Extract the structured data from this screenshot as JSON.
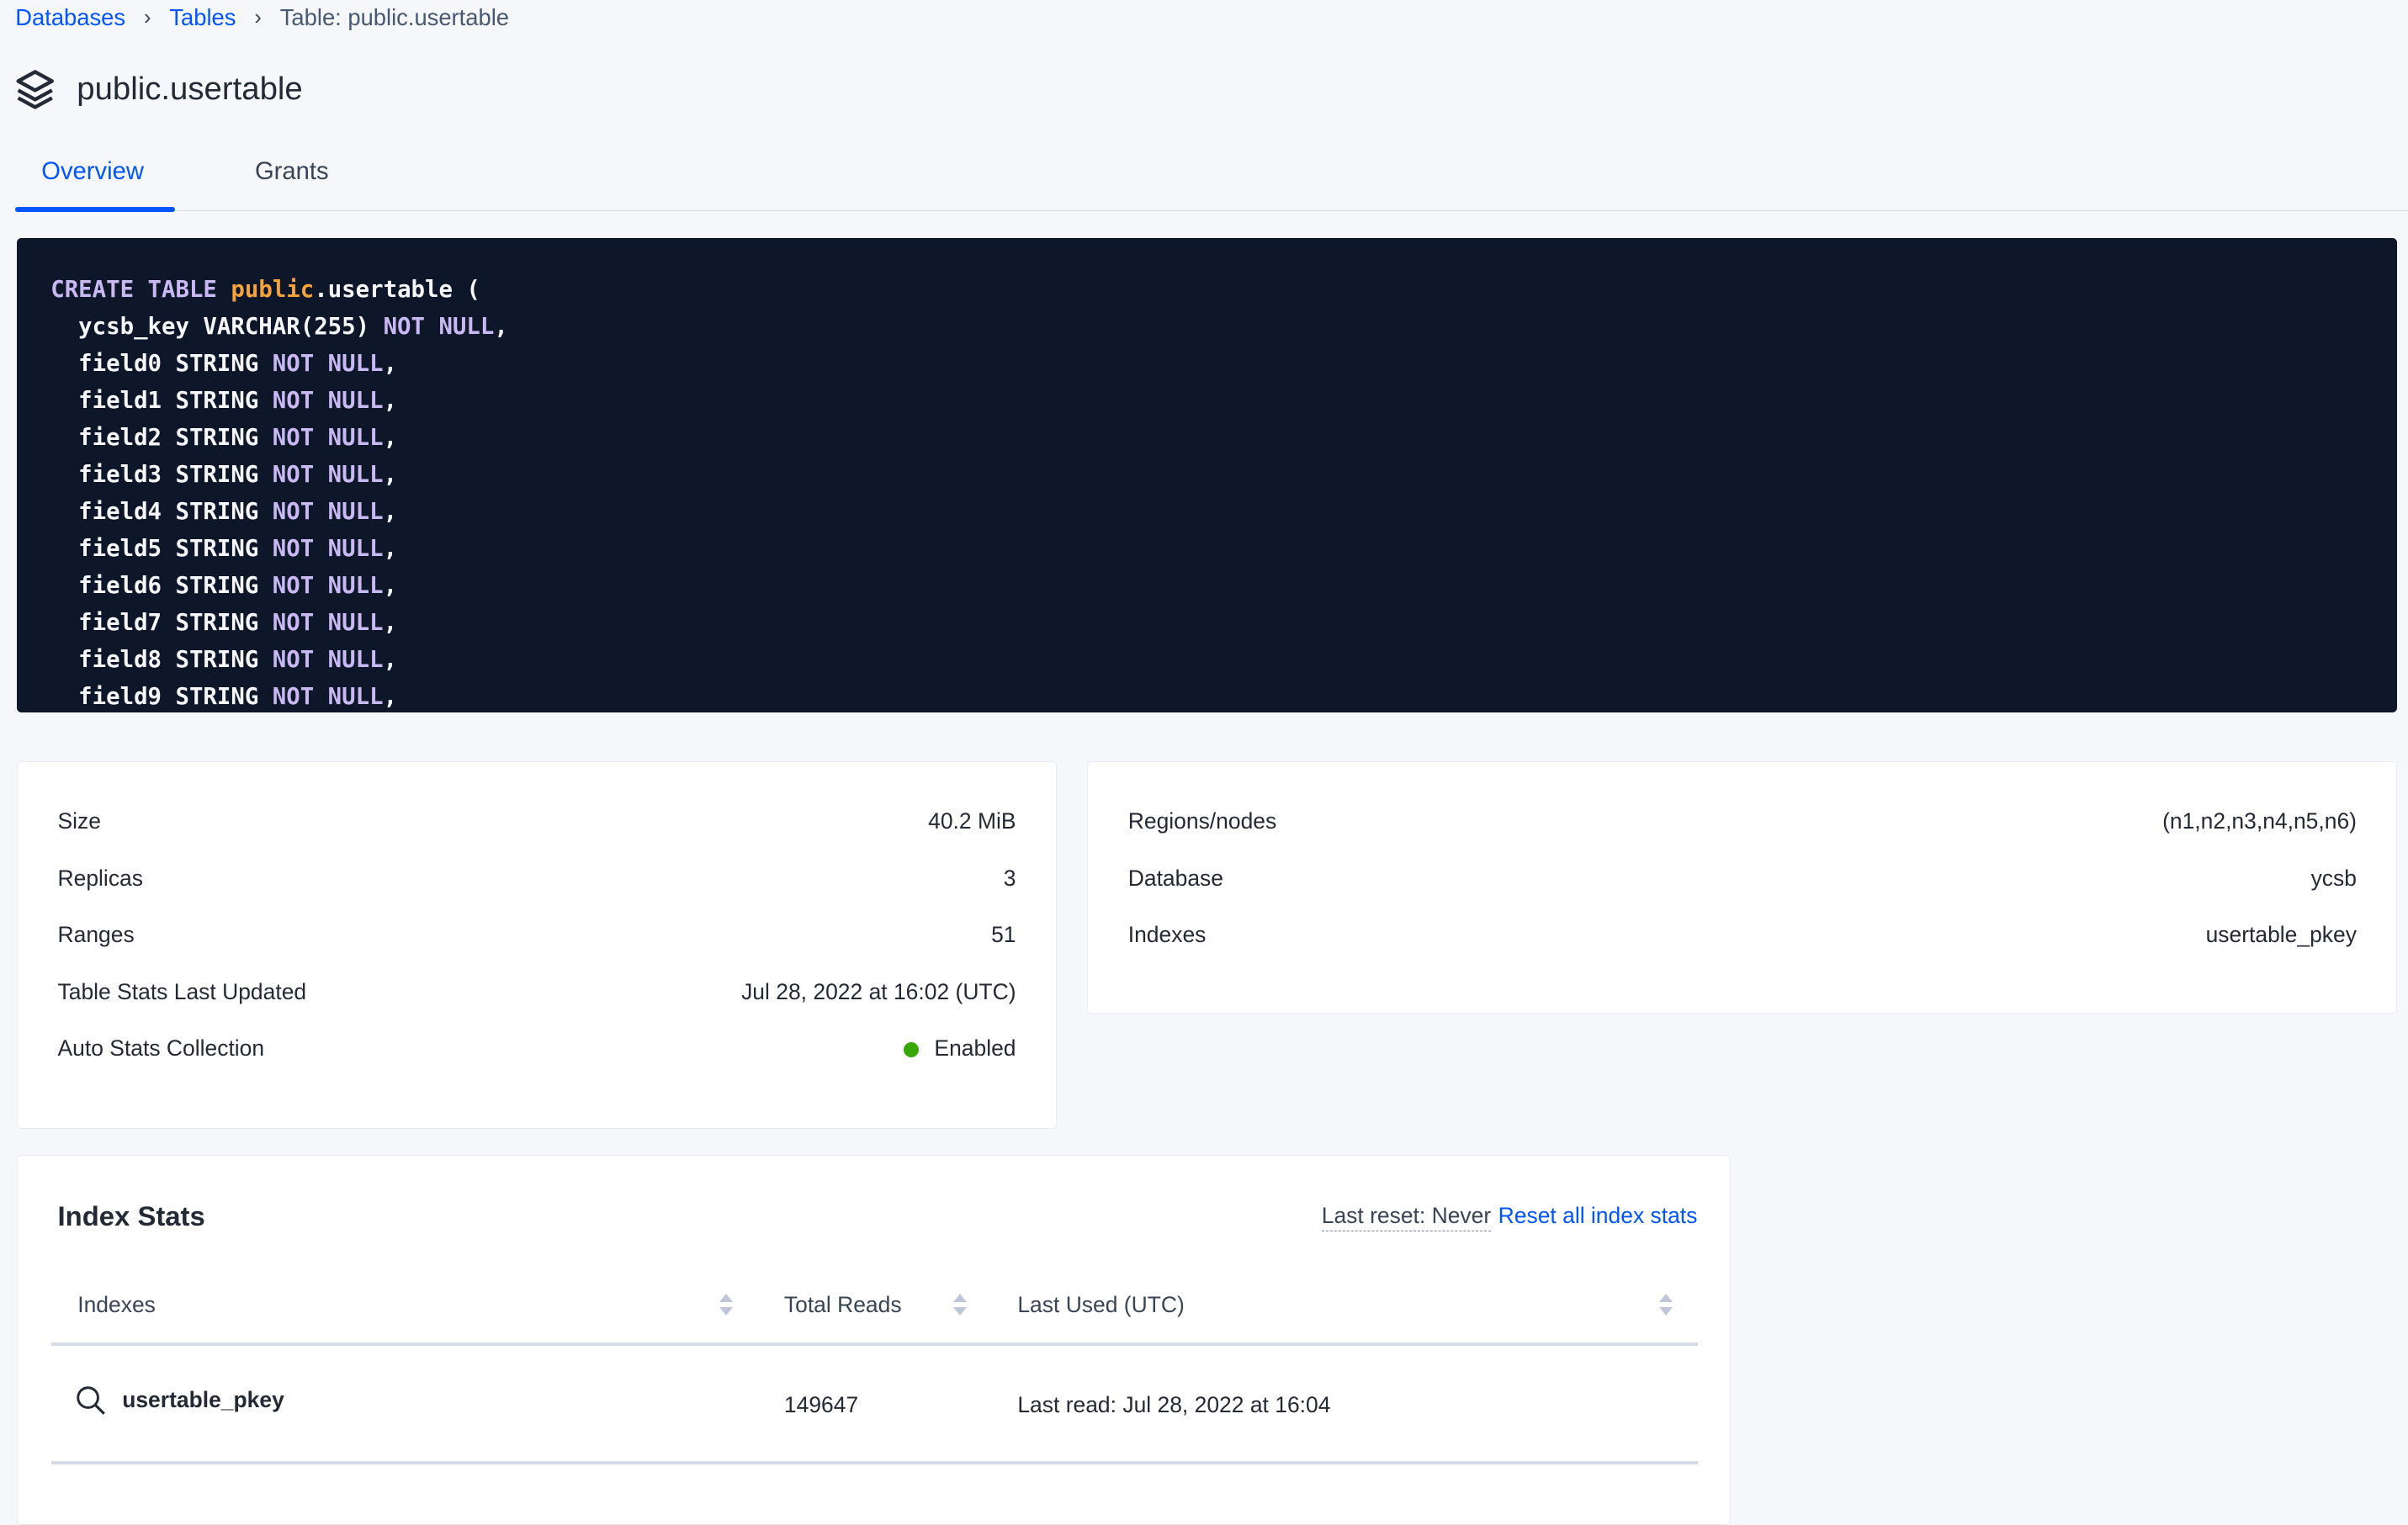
{
  "breadcrumb": {
    "items": [
      {
        "label": "Databases"
      },
      {
        "label": "Tables"
      }
    ],
    "current": "Table: public.usertable"
  },
  "page": {
    "title": "public.usertable",
    "icon": "stack-icon"
  },
  "tabs": [
    {
      "label": "Overview",
      "active": true
    },
    {
      "label": "Grants",
      "active": false
    }
  ],
  "create_statement": {
    "lines": [
      "CREATE TABLE public.usertable (",
      "  ycsb_key VARCHAR(255) NOT NULL,",
      "  field0 STRING NOT NULL,",
      "  field1 STRING NOT NULL,",
      "  field2 STRING NOT NULL,",
      "  field3 STRING NOT NULL,",
      "  field4 STRING NOT NULL,",
      "  field5 STRING NOT NULL,",
      "  field6 STRING NOT NULL,",
      "  field7 STRING NOT NULL,",
      "  field8 STRING NOT NULL,",
      "  field9 STRING NOT NULL,"
    ]
  },
  "stats_left": [
    {
      "label": "Size",
      "value": "40.2 MiB"
    },
    {
      "label": "Replicas",
      "value": "3"
    },
    {
      "label": "Ranges",
      "value": "51"
    },
    {
      "label": "Table Stats Last Updated",
      "value": "Jul 28, 2022 at 16:02 (UTC)"
    },
    {
      "label": "Auto Stats Collection",
      "value": "Enabled",
      "status_color": "#37a806"
    }
  ],
  "stats_right": [
    {
      "label": "Regions/nodes",
      "value": "(n1,n2,n3,n4,n5,n6)"
    },
    {
      "label": "Database",
      "value": "ycsb"
    },
    {
      "label": "Indexes",
      "value": "usertable_pkey"
    }
  ],
  "index_stats": {
    "title": "Index Stats",
    "last_reset": "Last reset: Never",
    "reset_label": "Reset all index stats",
    "columns": [
      "Indexes",
      "Total Reads",
      "Last Used (UTC)"
    ],
    "rows": [
      {
        "index": "usertable_pkey",
        "total_reads": "149647",
        "last_used": "Last read: Jul 28, 2022 at 16:04"
      }
    ]
  },
  "colors": {
    "accent": "#0055ff",
    "code_bg": "#0e1629",
    "keyword": "#c9b9f2",
    "schema": "#f5a33a"
  }
}
